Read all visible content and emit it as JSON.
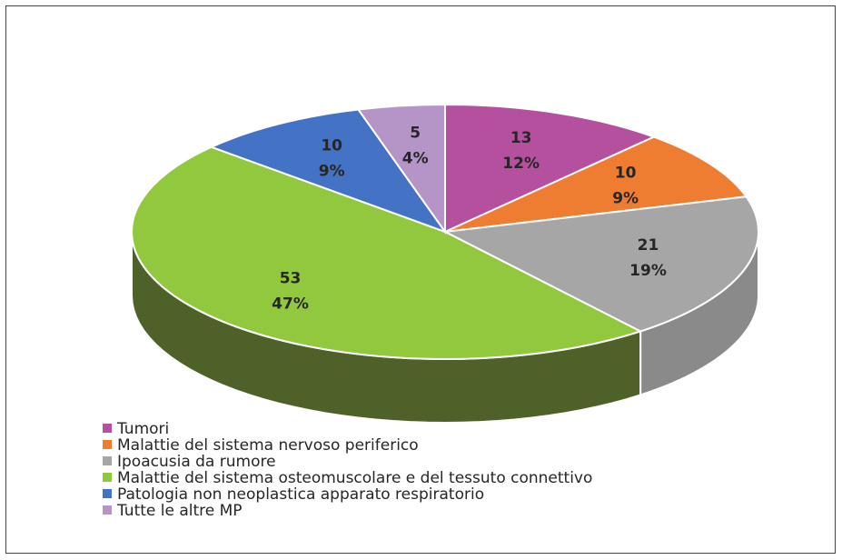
{
  "chart_data": {
    "type": "pie3d",
    "categories": [
      "Tumori",
      "Malattie del sistema nervoso periferico",
      "Ipoacusia da rumore",
      "Malattie del sistema osteomuscolare e del tessuto connettivo",
      "Patologia non neoplastica apparato respiratorio",
      "Tutte le altre MP"
    ],
    "values": [
      13,
      10,
      21,
      53,
      10,
      5
    ],
    "percent_labels": [
      "12%",
      "9%",
      "19%",
      "47%",
      "9%",
      "4%"
    ],
    "colors": [
      "#b5509f",
      "#ef7d31",
      "#a6a6a6",
      "#92c83e",
      "#4472c4",
      "#b594c8"
    ],
    "side_colors": [
      "#7a2f6a",
      "#a4501b",
      "#8a8a8a",
      "#4e6128",
      "#2b4a82",
      "#7a5f8a"
    ],
    "legend": "bottom-left"
  }
}
